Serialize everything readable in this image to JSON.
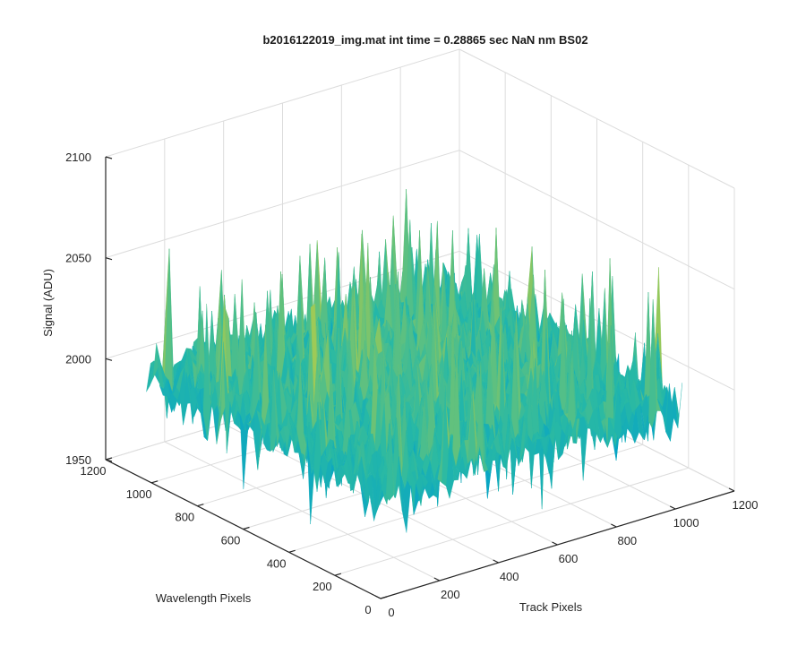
{
  "chart_data": {
    "type": "surface",
    "title": "b2016122019_img.mat int time = 0.28865 sec  NaN nm BS02",
    "xlabel": "Track Pixels",
    "ylabel": "Wavelength Pixels",
    "zlabel": "Signal (ADU)",
    "xlim": [
      0,
      1200
    ],
    "ylim": [
      0,
      1200
    ],
    "zlim": [
      1950,
      2100
    ],
    "xticks": [
      "0",
      "200",
      "400",
      "600",
      "800",
      "1000",
      "1200"
    ],
    "yticks": [
      "0",
      "200",
      "400",
      "600",
      "800",
      "1000",
      "1200"
    ],
    "zticks": [
      "1950",
      "2000",
      "2050",
      "2100"
    ],
    "x_extent": [
      1,
      1024
    ],
    "y_extent": [
      1,
      1024
    ],
    "signal_baseline": 2000,
    "signal_range_approx": [
      1960,
      2080
    ],
    "grid": true,
    "colormap": "parula",
    "view": "3d-isometric"
  }
}
